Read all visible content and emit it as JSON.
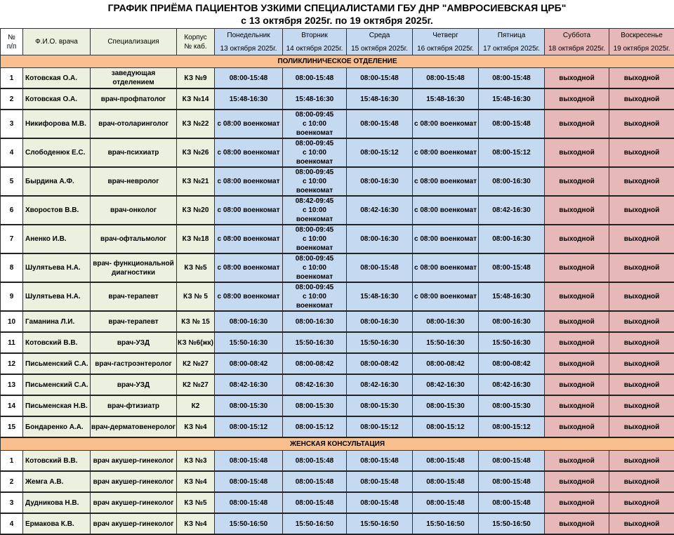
{
  "title": "ГРАФИК ПРИЁМА ПАЦИЕНТОВ УЗКИМИ СПЕЦИАЛИСТАМИ ГБУ  ДНР \"АМВРОСИЕВСКАЯ ЦРБ\"",
  "subtitle": "с 13 октября 2025г. по 19 октября 2025г.",
  "colors": {
    "info": "#ebf1de",
    "weekday": "#c5d9f1",
    "weekend": "#e6b8b7",
    "section": "#fabf8f"
  },
  "headers": {
    "num": "№\nп/п",
    "name": "Ф.И.О. врача",
    "spec": "Специализация",
    "room": "Корпус\n№ каб.",
    "days": [
      {
        "day": "Понедельник",
        "date": "13 октября 2025г."
      },
      {
        "day": "Вторник",
        "date": "14 октября 2025г."
      },
      {
        "day": "Среда",
        "date": "15 октября 2025г."
      },
      {
        "day": "Четверг",
        "date": "16 октября 2025г."
      },
      {
        "day": "Пятница",
        "date": "17 октября 2025г."
      },
      {
        "day": "Суббота",
        "date": "18 октября 2025г."
      },
      {
        "day": "Воскресенье",
        "date": "19 октября 2025г."
      }
    ]
  },
  "sections": [
    {
      "title": "ПОЛИКЛИНИЧЕСКОЕ ОТДЕЛЕНИЕ",
      "rows": [
        [
          "1",
          "Котовская О.А.",
          "заведующая отделением",
          "КЗ №9",
          "08:00-15:48",
          "08:00-15:48",
          "08:00-15:48",
          "08:00-15:48",
          "08:00-15:48",
          "выходной",
          "выходной"
        ],
        [
          "2",
          "Котовская О.А.",
          "врач-профпатолог",
          "КЗ №14",
          "15:48-16:30",
          "15:48-16:30",
          "15:48-16:30",
          "15:48-16:30",
          "15:48-16:30",
          "выходной",
          "выходной"
        ],
        [
          "3",
          "Никифорова М.В.",
          "врач-отоларинголог",
          "КЗ №22",
          "с 08:00 военкомат",
          "08:00-09:45\nс 10:00 военкомат",
          "08:00-15:48",
          "с 08:00 военкомат",
          "08:00-15:48",
          "выходной",
          "выходной"
        ],
        [
          "4",
          "Слободенюк Е.С.",
          "врач-психиатр",
          "КЗ №26",
          "с 08:00 военкомат",
          "08:00-09:45\nс 10:00 военкомат",
          "08:00-15:12",
          "с 08:00 военкомат",
          "08:00-15:12",
          "выходной",
          "выходной"
        ],
        [
          "5",
          "Бырдина А.Ф.",
          "врач-невролог",
          "КЗ №21",
          "с 08:00 военкомат",
          "08:00-09:45\nс 10:00 военкомат",
          "08:00-16:30",
          "с 08:00 военкомат",
          "08:00-16:30",
          "выходной",
          "выходной"
        ],
        [
          "6",
          "Хворостов В.В.",
          "врач-онколог",
          "КЗ №20",
          "с 08:00 военкомат",
          "08:42-09:45\nс 10:00 военкомат",
          "08:42-16:30",
          "с 08:00 военкомат",
          "08:42-16:30",
          "выходной",
          "выходной"
        ],
        [
          "7",
          "Аненко И.В.",
          "врач-офтальмолог",
          "КЗ №18",
          "с 08:00 военкомат",
          "08:00-09:45\nс 10:00 военкомат",
          "08:00-16:30",
          "с 08:00 военкомат",
          "08:00-16:30",
          "выходной",
          "выходной"
        ],
        [
          "8",
          "Шулятьева Н.А.",
          "врач- функциональной\nдиагностики",
          "КЗ №5",
          "с 08:00 военкомат",
          "08:00-09:45\nс 10:00 военкомат",
          "08:00-15:48",
          "с 08:00 военкомат",
          "08:00-15:48",
          "выходной",
          "выходной"
        ],
        [
          "9",
          "Шулятьева Н.А.",
          "врач-терапевт",
          "КЗ № 5",
          "с 08:00 военкомат",
          "08:00-09:45\nс 10:00 военкомат",
          "15:48-16:30",
          "с 08:00 военкомат",
          "15:48-16:30",
          "выходной",
          "выходной"
        ],
        [
          "10",
          "Гаманина Л.И.",
          "врач-терапевт",
          "КЗ № 15",
          "08:00-16:30",
          "08:00-16:30",
          "08:00-16:30",
          "08:00-16:30",
          "08:00-16:30",
          "выходной",
          "выходной"
        ],
        [
          "11",
          "Котовский В.В.",
          "врач-УЗД",
          "КЗ №6(жк)",
          "15:50-16:30",
          "15:50-16:30",
          "15:50-16:30",
          "15:50-16:30",
          "15:50-16:30",
          "выходной",
          "выходной"
        ],
        [
          "12",
          "Письменский С.А.",
          "врач-гастроэнтеролог",
          "К2 №27",
          "08:00-08:42",
          "08:00-08:42",
          "08:00-08:42",
          "08:00-08:42",
          "08:00-08:42",
          "выходной",
          "выходной"
        ],
        [
          "13",
          "Письменский С.А.",
          "врач-УЗД",
          "К2 №27",
          "08:42-16:30",
          "08:42-16:30",
          "08:42-16:30",
          "08:42-16:30",
          "08:42-16:30",
          "выходной",
          "выходной"
        ],
        [
          "14",
          "Письменская Н.В.",
          "врач-фтизиатр",
          "К2",
          "08:00-15:30",
          "08:00-15:30",
          "08:00-15:30",
          "08:00-15:30",
          "08:00-15:30",
          "выходной",
          "выходной"
        ],
        [
          "15",
          "Бондаренко А.А.",
          "врач-дерматовенеролог",
          "КЗ №4",
          "08:00-15:12",
          "08:00-15:12",
          "08:00-15:12",
          "08:00-15:12",
          "08:00-15:12",
          "выходной",
          "выходной"
        ]
      ]
    },
    {
      "title": "ЖЕНСКАЯ КОНСУЛЬТАЦИЯ",
      "rows": [
        [
          "1",
          "Котовский В.В.",
          "врач акушер-гинеколог",
          "КЗ №3",
          "08:00-15:48",
          "08:00-15:48",
          "08:00-15:48",
          "08:00-15:48",
          "08:00-15:48",
          "выходной",
          "выходной"
        ],
        [
          "2",
          "Жемга А.В.",
          "врач акушер-гинеколог",
          "КЗ №4",
          "08:00-15:48",
          "08:00-15:48",
          "08:00-15:48",
          "08:00-15:48",
          "08:00-15:48",
          "выходной",
          "выходной"
        ],
        [
          "3",
          "Дудникова Н.В.",
          "врач акушер-гинеколог",
          "КЗ №5",
          "08:00-15:48",
          "08:00-15:48",
          "08:00-15:48",
          "08:00-15:48",
          "08:00-15:48",
          "выходной",
          "выходной"
        ],
        [
          "4",
          "Ермакова К.В.",
          "врач акушер-гинеколог",
          "КЗ №4",
          "15:50-16:50",
          "15:50-16:50",
          "15:50-16:50",
          "15:50-16:50",
          "15:50-16:50",
          "выходной",
          "выходной"
        ]
      ]
    }
  ]
}
